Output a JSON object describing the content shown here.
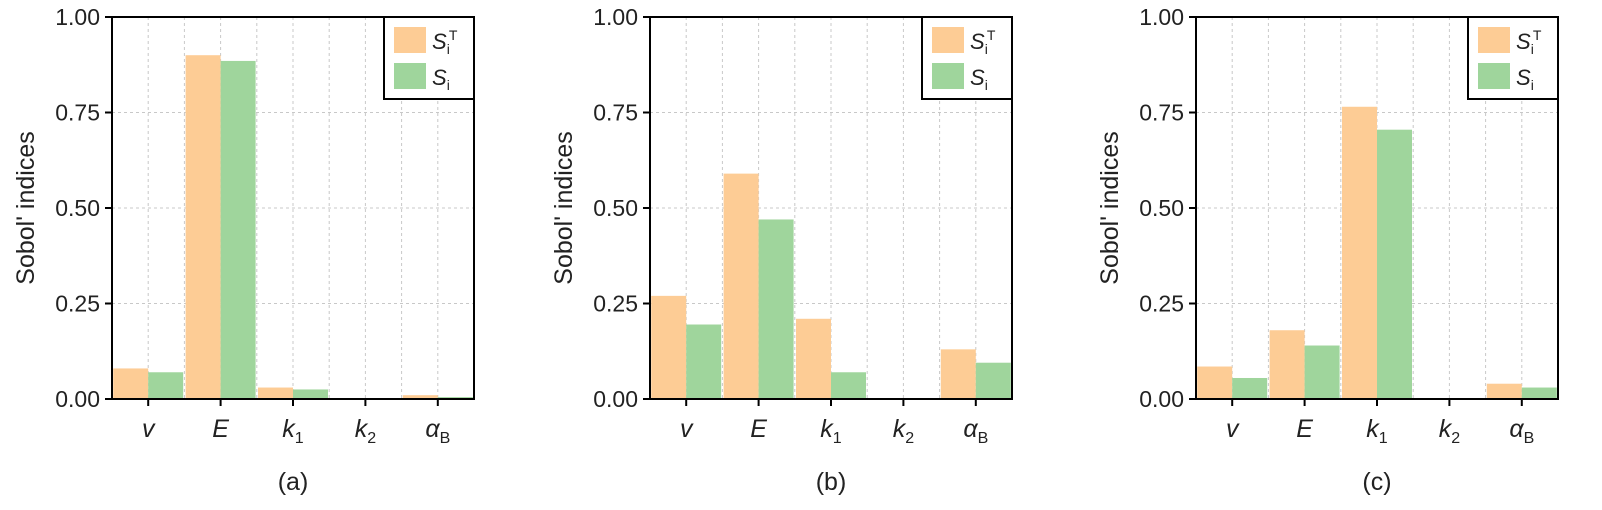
{
  "colors": {
    "total_order": "#fdcc95",
    "first_order": "#9fd59c"
  },
  "legend": [
    {
      "key": "total_order",
      "base": "S",
      "sub": "i",
      "sup": "T"
    },
    {
      "key": "first_order",
      "base": "S",
      "sub": "i",
      "sup": ""
    }
  ],
  "chart_data": [
    {
      "type": "bar",
      "panel_label": "(a)",
      "ylabel": "Sobol' indices",
      "ylim": [
        0,
        1
      ],
      "yticks": [
        "0.00",
        "0.25",
        "0.50",
        "0.75",
        "1.00"
      ],
      "categories": [
        {
          "base": "v",
          "sub": ""
        },
        {
          "base": "E",
          "sub": ""
        },
        {
          "base": "k",
          "sub": "1"
        },
        {
          "base": "k",
          "sub": "2"
        },
        {
          "base": "α",
          "sub": "B"
        }
      ],
      "series": [
        {
          "name": "S_i^T",
          "values": [
            0.08,
            0.9,
            0.03,
            0.0,
            0.01
          ]
        },
        {
          "name": "S_i",
          "values": [
            0.07,
            0.885,
            0.025,
            0.0,
            0.005
          ]
        }
      ],
      "grid": true,
      "legend_position": "top-right"
    },
    {
      "type": "bar",
      "panel_label": "(b)",
      "ylabel": "Sobol' indices",
      "ylim": [
        0,
        1
      ],
      "yticks": [
        "0.00",
        "0.25",
        "0.50",
        "0.75",
        "1.00"
      ],
      "categories": [
        {
          "base": "v",
          "sub": ""
        },
        {
          "base": "E",
          "sub": ""
        },
        {
          "base": "k",
          "sub": "1"
        },
        {
          "base": "k",
          "sub": "2"
        },
        {
          "base": "α",
          "sub": "B"
        }
      ],
      "series": [
        {
          "name": "S_i^T",
          "values": [
            0.27,
            0.59,
            0.21,
            0.0,
            0.13
          ]
        },
        {
          "name": "S_i",
          "values": [
            0.195,
            0.47,
            0.07,
            0.0,
            0.095
          ]
        }
      ],
      "grid": true,
      "legend_position": "top-right"
    },
    {
      "type": "bar",
      "panel_label": "(c)",
      "ylabel": "Sobol' indices",
      "ylim": [
        0,
        1
      ],
      "yticks": [
        "0.00",
        "0.25",
        "0.50",
        "0.75",
        "1.00"
      ],
      "categories": [
        {
          "base": "v",
          "sub": ""
        },
        {
          "base": "E",
          "sub": ""
        },
        {
          "base": "k",
          "sub": "1"
        },
        {
          "base": "k",
          "sub": "2"
        },
        {
          "base": "α",
          "sub": "B"
        }
      ],
      "series": [
        {
          "name": "S_i^T",
          "values": [
            0.085,
            0.18,
            0.765,
            0.0,
            0.04
          ]
        },
        {
          "name": "S_i",
          "values": [
            0.055,
            0.14,
            0.705,
            0.0,
            0.03
          ]
        }
      ],
      "grid": true,
      "legend_position": "top-right"
    }
  ]
}
